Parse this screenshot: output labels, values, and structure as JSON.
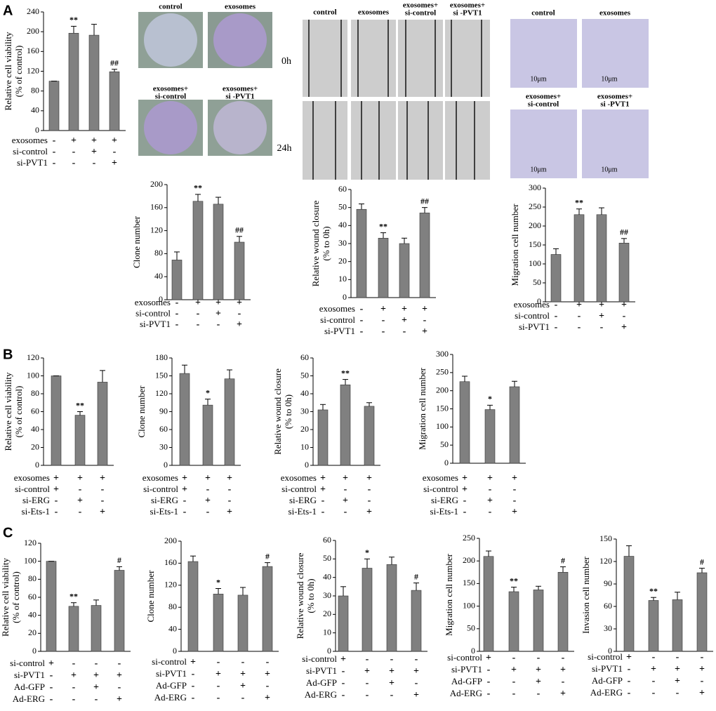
{
  "panels": [
    "A",
    "B",
    "C"
  ],
  "colony_labels": [
    [
      "control"
    ],
    [
      "exosomes"
    ],
    [
      "exosomes+",
      "si-control"
    ],
    [
      "exosomes+",
      "si -PVT1"
    ]
  ],
  "wound_labels": [
    [
      "control"
    ],
    [
      "exosomes"
    ],
    [
      "exosomes+",
      "si-control"
    ],
    [
      "exosomes+",
      "si -PVT1"
    ]
  ],
  "wound_times": [
    "0h",
    "24h"
  ],
  "transwell_labels": [
    [
      "control"
    ],
    [
      "exosomes"
    ],
    [
      "exosomes+",
      "si-control"
    ],
    [
      "exosomes+",
      "si -PVT1"
    ]
  ],
  "scale_bars": [
    "10μm",
    "10μm",
    "10μm",
    "10μm"
  ],
  "chart_data": [
    {
      "type": "bar",
      "ylabel": [
        "Relative  cell viability",
        "(% of control)"
      ],
      "color": "#808080",
      "values": [
        100,
        197,
        193,
        119
      ],
      "errors": [
        0,
        14,
        22,
        5
      ],
      "annotations": [
        null,
        "**",
        null,
        "##"
      ],
      "ylim": [
        0,
        240
      ],
      "yticks": [
        0,
        40,
        80,
        120,
        160,
        200,
        240
      ],
      "conditions": [
        {
          "name": "exosomes",
          "signs": [
            "-",
            "+",
            "+",
            "+"
          ]
        },
        {
          "name": "si-control",
          "signs": [
            "-",
            "-",
            "+",
            "-"
          ]
        },
        {
          "name": "si-PVT1",
          "signs": [
            "-",
            "-",
            "-",
            "+"
          ]
        }
      ]
    },
    {
      "type": "bar",
      "ylabel": [
        "Clone number"
      ],
      "color": "#808080",
      "values": [
        69,
        171,
        166,
        100
      ],
      "errors": [
        14,
        12,
        12,
        10
      ],
      "annotations": [
        null,
        "**",
        null,
        "##"
      ],
      "ylim": [
        0,
        200
      ],
      "yticks": [
        0,
        40,
        80,
        120,
        160,
        200
      ],
      "conditions": [
        {
          "name": "exosomes",
          "signs": [
            "-",
            "+",
            "+",
            "+"
          ]
        },
        {
          "name": "si-control",
          "signs": [
            "-",
            "-",
            "+",
            "-"
          ]
        },
        {
          "name": "si-PVT1",
          "signs": [
            "-",
            "-",
            "-",
            "+"
          ]
        }
      ]
    },
    {
      "type": "bar",
      "ylabel": [
        "Relative wound closure",
        "(% to 0h)"
      ],
      "color": "#808080",
      "values": [
        49,
        33,
        30,
        47
      ],
      "errors": [
        3,
        3,
        3,
        3
      ],
      "annotations": [
        null,
        "**",
        null,
        "##"
      ],
      "ylim": [
        0,
        60
      ],
      "yticks": [
        0,
        10,
        20,
        30,
        40,
        50,
        60
      ],
      "conditions": [
        {
          "name": "exosomes",
          "signs": [
            "-",
            "+",
            "+",
            "+"
          ]
        },
        {
          "name": "si-control",
          "signs": [
            "-",
            "-",
            "+",
            "-"
          ]
        },
        {
          "name": "si-PVT1",
          "signs": [
            "-",
            "-",
            "-",
            "+"
          ]
        }
      ]
    },
    {
      "type": "bar",
      "ylabel": [
        "Migration cell number"
      ],
      "color": "#808080",
      "values": [
        125,
        230,
        230,
        155
      ],
      "errors": [
        15,
        15,
        18,
        12
      ],
      "annotations": [
        null,
        "**",
        null,
        "##"
      ],
      "ylim": [
        0,
        300
      ],
      "yticks": [
        0,
        50,
        100,
        150,
        200,
        250,
        300
      ],
      "conditions": [
        {
          "name": "exosomes",
          "signs": [
            "-",
            "+",
            "+",
            "+"
          ]
        },
        {
          "name": "si-control",
          "signs": [
            "-",
            "-",
            "+",
            "-"
          ]
        },
        {
          "name": "si-PVT1",
          "signs": [
            "-",
            "-",
            "-",
            "+"
          ]
        }
      ]
    },
    {
      "type": "bar",
      "ylabel": [
        "Relative cell viability",
        "(% of control)"
      ],
      "color": "#808080",
      "values": [
        100,
        56,
        93
      ],
      "errors": [
        0,
        4,
        13
      ],
      "annotations": [
        null,
        "**",
        null
      ],
      "ylim": [
        0,
        120
      ],
      "yticks": [
        0,
        20,
        40,
        60,
        80,
        100,
        120
      ],
      "conditions": [
        {
          "name": "exosomes",
          "signs": [
            "+",
            "+",
            "+"
          ]
        },
        {
          "name": "si-control",
          "signs": [
            "+",
            "-",
            "-"
          ]
        },
        {
          "name": "si-ERG",
          "signs": [
            "-",
            "+",
            "-"
          ]
        },
        {
          "name": "si-Ets-1",
          "signs": [
            "-",
            "-",
            "+"
          ]
        }
      ]
    },
    {
      "type": "bar",
      "ylabel": [
        "Clone number"
      ],
      "color": "#808080",
      "values": [
        154,
        101,
        145
      ],
      "errors": [
        14,
        10,
        15
      ],
      "annotations": [
        null,
        "*",
        null
      ],
      "ylim": [
        0,
        180
      ],
      "yticks": [
        0,
        30,
        60,
        90,
        120,
        150,
        180
      ],
      "conditions": [
        {
          "name": "exosomes",
          "signs": [
            "+",
            "+",
            "+"
          ]
        },
        {
          "name": "si-control",
          "signs": [
            "+",
            "-",
            "-"
          ]
        },
        {
          "name": "si-ERG",
          "signs": [
            "-",
            "+",
            "-"
          ]
        },
        {
          "name": "si-Ets-1",
          "signs": [
            "-",
            "-",
            "+"
          ]
        }
      ]
    },
    {
      "type": "bar",
      "ylabel": [
        "Relative wound closure",
        "(% to 0h)"
      ],
      "color": "#808080",
      "values": [
        31,
        45,
        33
      ],
      "errors": [
        3,
        3,
        2
      ],
      "annotations": [
        null,
        "**",
        null
      ],
      "ylim": [
        0,
        60
      ],
      "yticks": [
        0,
        10,
        20,
        30,
        40,
        50,
        60
      ],
      "conditions": [
        {
          "name": "exosomes",
          "signs": [
            "+",
            "+",
            "+"
          ]
        },
        {
          "name": "si-control",
          "signs": [
            "+",
            "-",
            "-"
          ]
        },
        {
          "name": "si-ERG",
          "signs": [
            "-",
            "+",
            "-"
          ]
        },
        {
          "name": "si-Ets-1",
          "signs": [
            "-",
            "-",
            "+"
          ]
        }
      ]
    },
    {
      "type": "bar",
      "ylabel": [
        "Migration cell number"
      ],
      "color": "#808080",
      "values": [
        225,
        148,
        211
      ],
      "errors": [
        15,
        12,
        15
      ],
      "annotations": [
        null,
        "*",
        null
      ],
      "ylim": [
        0,
        300
      ],
      "yticks": [
        0,
        50,
        100,
        150,
        200,
        250,
        300
      ],
      "conditions": [
        {
          "name": "exosomes",
          "signs": [
            "+",
            "+",
            "+"
          ]
        },
        {
          "name": "si-control",
          "signs": [
            "+",
            "-",
            "-"
          ]
        },
        {
          "name": "si-ERG",
          "signs": [
            "-",
            "+",
            "-"
          ]
        },
        {
          "name": "si-Ets-1",
          "signs": [
            "-",
            "-",
            "+"
          ]
        }
      ]
    },
    {
      "type": "bar",
      "ylabel": [
        "Relative cell viability",
        "(% of control)"
      ],
      "color": "#808080",
      "values": [
        100,
        50,
        51,
        90
      ],
      "errors": [
        0,
        4,
        6,
        4
      ],
      "annotations": [
        null,
        "**",
        null,
        "#"
      ],
      "ylim": [
        0,
        120
      ],
      "yticks": [
        0,
        20,
        40,
        60,
        80,
        100,
        120
      ],
      "conditions": [
        {
          "name": "si-control",
          "signs": [
            "+",
            "-",
            "-",
            "-"
          ]
        },
        {
          "name": "si-PVT1",
          "signs": [
            "-",
            "+",
            "+",
            "+"
          ]
        },
        {
          "name": "Ad-GFP",
          "signs": [
            "-",
            "-",
            "+",
            "-"
          ]
        },
        {
          "name": "Ad-ERG",
          "signs": [
            "-",
            "-",
            "-",
            "+"
          ]
        }
      ]
    },
    {
      "type": "bar",
      "ylabel": [
        "Clone number"
      ],
      "color": "#808080",
      "values": [
        163,
        104,
        102,
        154
      ],
      "errors": [
        10,
        10,
        14,
        7
      ],
      "annotations": [
        null,
        "*",
        null,
        "#"
      ],
      "ylim": [
        0,
        200
      ],
      "yticks": [
        0,
        40,
        80,
        120,
        160,
        200
      ],
      "conditions": [
        {
          "name": "si-control",
          "signs": [
            "+",
            "-",
            "-",
            "-"
          ]
        },
        {
          "name": "si-PVT1",
          "signs": [
            "-",
            "+",
            "+",
            "+"
          ]
        },
        {
          "name": "Ad-GFP",
          "signs": [
            "-",
            "-",
            "+",
            "-"
          ]
        },
        {
          "name": "Ad-ERG",
          "signs": [
            "-",
            "-",
            "-",
            "+"
          ]
        }
      ]
    },
    {
      "type": "bar",
      "ylabel": [
        "Relative wound closure",
        "(% to 0h)"
      ],
      "color": "#808080",
      "values": [
        30,
        45,
        47,
        33
      ],
      "errors": [
        5,
        5,
        4,
        4
      ],
      "annotations": [
        null,
        "*",
        null,
        "#"
      ],
      "ylim": [
        0,
        60
      ],
      "yticks": [
        0,
        10,
        20,
        30,
        40,
        50,
        60
      ],
      "conditions": [
        {
          "name": "si-control",
          "signs": [
            "+",
            "-",
            "-",
            "-"
          ]
        },
        {
          "name": "si-PVT1",
          "signs": [
            "-",
            "+",
            "+",
            "+"
          ]
        },
        {
          "name": "Ad-GFP",
          "signs": [
            "-",
            "-",
            "+",
            "-"
          ]
        },
        {
          "name": "Ad-ERG",
          "signs": [
            "-",
            "-",
            "-",
            "+"
          ]
        }
      ]
    },
    {
      "type": "bar",
      "ylabel": [
        "Migration cell number"
      ],
      "color": "#808080",
      "values": [
        210,
        132,
        136,
        175
      ],
      "errors": [
        12,
        10,
        8,
        12
      ],
      "annotations": [
        null,
        "**",
        null,
        "#"
      ],
      "ylim": [
        0,
        250
      ],
      "yticks": [
        0,
        50,
        100,
        150,
        200,
        250
      ],
      "conditions": [
        {
          "name": "si-control",
          "signs": [
            "+",
            "-",
            "-",
            "-"
          ]
        },
        {
          "name": "si-PVT1",
          "signs": [
            "-",
            "+",
            "+",
            "+"
          ]
        },
        {
          "name": "Ad-GFP",
          "signs": [
            "-",
            "-",
            "+",
            "-"
          ]
        },
        {
          "name": "Ad-ERG",
          "signs": [
            "-",
            "-",
            "-",
            "+"
          ]
        }
      ]
    },
    {
      "type": "bar",
      "ylabel": [
        "Invasion cell number"
      ],
      "color": "#808080",
      "values": [
        127,
        68,
        69,
        105
      ],
      "errors": [
        14,
        4,
        10,
        6
      ],
      "annotations": [
        null,
        "**",
        null,
        "#"
      ],
      "ylim": [
        0,
        150
      ],
      "yticks": [
        0,
        30,
        60,
        90,
        120,
        150
      ],
      "conditions": [
        {
          "name": "si-control",
          "signs": [
            "+",
            "-",
            "-",
            "-"
          ]
        },
        {
          "name": "si-PVT1",
          "signs": [
            "-",
            "+",
            "+",
            "+"
          ]
        },
        {
          "name": "Ad-GFP",
          "signs": [
            "-",
            "-",
            "+",
            "-"
          ]
        },
        {
          "name": "Ad-ERG",
          "signs": [
            "-",
            "-",
            "-",
            "+"
          ]
        }
      ]
    }
  ]
}
